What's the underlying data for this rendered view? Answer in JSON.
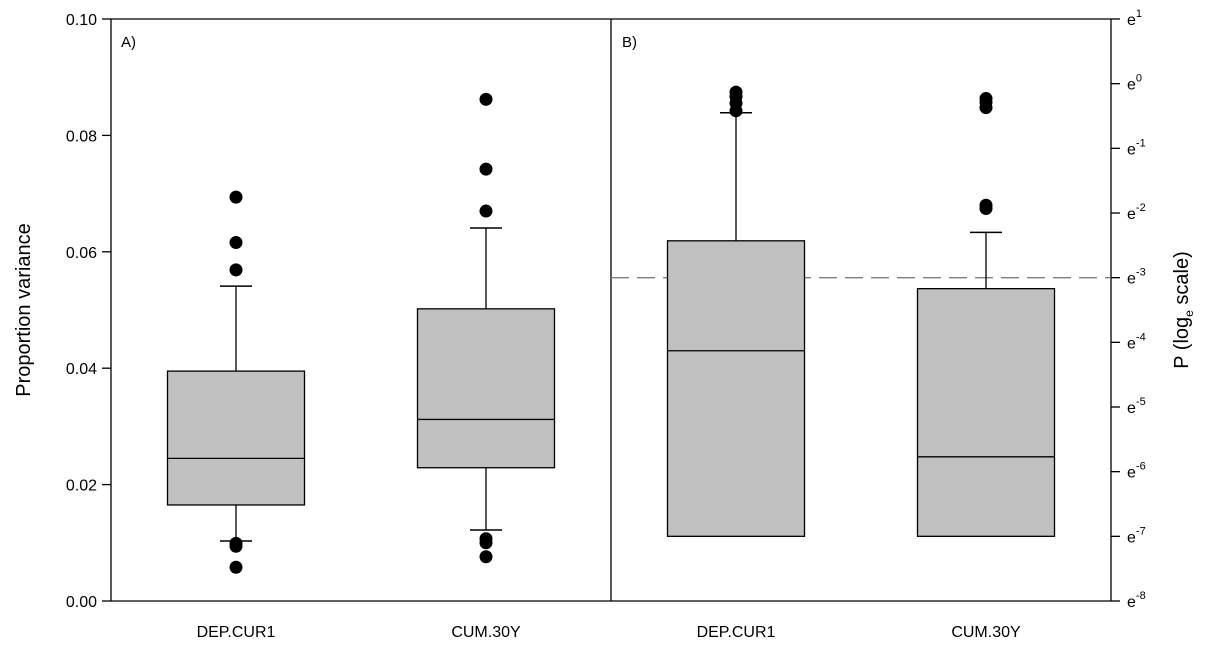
{
  "chart_data": [
    {
      "type": "box",
      "panel_label": "A)",
      "ylabel": "Proportion variance",
      "ylim": [
        0,
        0.1
      ],
      "yticks": [
        "0.00",
        "0.02",
        "0.04",
        "0.06",
        "0.08",
        "0.10"
      ],
      "ytick_values": [
        0,
        0.02,
        0.04,
        0.06,
        0.08,
        0.1
      ],
      "categories": [
        "DEP.CUR1",
        "CUM.30Y"
      ],
      "boxes": [
        {
          "category": "DEP.CUR1",
          "whisker_low": 0.0103,
          "q1": 0.0165,
          "median": 0.0245,
          "q3": 0.0395,
          "whisker_high": 0.0541,
          "outliers": [
            0.0694,
            0.0616,
            0.0569,
            0.0099,
            0.0094,
            0.0058
          ]
        },
        {
          "category": "CUM.30Y",
          "whisker_low": 0.0122,
          "q1": 0.0229,
          "median": 0.0312,
          "q3": 0.0502,
          "whisker_high": 0.0641,
          "outliers": [
            0.0862,
            0.0742,
            0.067,
            0.0107,
            0.01,
            0.0076
          ]
        }
      ],
      "grid": false,
      "box_color": "#c0c0c0"
    },
    {
      "type": "box",
      "panel_label": "B)",
      "ylabel": "P (log",
      "ylabel_sub": "e",
      "ylabel_suffix": " scale)",
      "y_scale": "log_e",
      "ylim_exponent": [
        -8,
        1
      ],
      "yticks": [
        {
          "base": "e",
          "exp": "1",
          "value": 1
        },
        {
          "base": "e",
          "exp": "0",
          "value": 0
        },
        {
          "base": "e",
          "exp": "-1",
          "value": -1
        },
        {
          "base": "e",
          "exp": "-2",
          "value": -2
        },
        {
          "base": "e",
          "exp": "-3",
          "value": -3
        },
        {
          "base": "e",
          "exp": "-4",
          "value": -4
        },
        {
          "base": "e",
          "exp": "-5",
          "value": -5
        },
        {
          "base": "e",
          "exp": "-6",
          "value": -6
        },
        {
          "base": "e",
          "exp": "-7",
          "value": -7
        },
        {
          "base": "e",
          "exp": "-8",
          "value": -8
        }
      ],
      "categories": [
        "DEP.CUR1",
        "CUM.30Y"
      ],
      "boxes": [
        {
          "category": "DEP.CUR1",
          "whisker_low": -7.0,
          "q1": -7.0,
          "median": -4.13,
          "q3": -2.43,
          "whisker_high": -0.45,
          "outliers": [
            -0.13,
            -0.2,
            -0.3,
            -0.42
          ]
        },
        {
          "category": "CUM.30Y",
          "whisker_low": -7.0,
          "q1": -7.0,
          "median": -5.77,
          "q3": -3.17,
          "whisker_high": -2.3,
          "outliers": [
            -0.23,
            -0.29,
            -0.37,
            -1.88,
            -1.93
          ]
        }
      ],
      "reference_line": {
        "value": -3.0,
        "style": "dashed",
        "color": "#808080"
      },
      "grid": false,
      "box_color": "#c0c0c0"
    }
  ]
}
